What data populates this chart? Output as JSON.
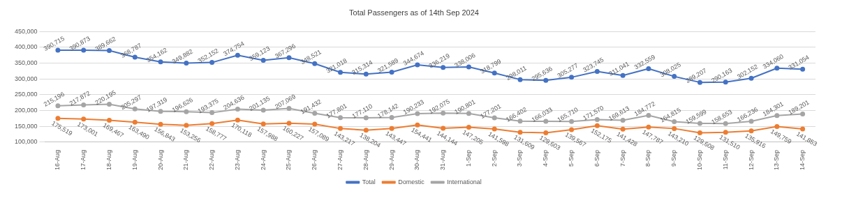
{
  "chart_data": {
    "type": "line",
    "title": "Total Passengers as of 14th Sep 2024",
    "categories": [
      "16-Aug",
      "17-Aug",
      "18-Aug",
      "19-Aug",
      "20-Aug",
      "21-Aug",
      "22-Aug",
      "23-Aug",
      "24-Aug",
      "25-Aug",
      "26-Aug",
      "27-Aug",
      "28-Aug",
      "29-Aug",
      "30-Aug",
      "31-Aug",
      "1-Sep",
      "2-Sep",
      "3-Sep",
      "4-Sep",
      "5-Sep",
      "6-Sep",
      "7-Sep",
      "8-Sep",
      "9-Sep",
      "10-Sep",
      "11-Sep",
      "12-Sep",
      "13-Sep",
      "14-Sep"
    ],
    "series": [
      {
        "name": "Total",
        "color": "#4472c4",
        "values": [
          390715,
          390873,
          389662,
          368787,
          354162,
          349882,
          352152,
          374754,
          359123,
          367296,
          348521,
          321018,
          315314,
          321589,
          344674,
          336219,
          338006,
          318799,
          298011,
          295636,
          305277,
          323745,
          311041,
          332559,
          308025,
          289207,
          290163,
          302152,
          334060,
          331054
        ],
        "value_labels": [
          "390,715",
          "390,873",
          "389,662",
          "368,787",
          "354,162",
          "349,882",
          "352,152",
          "374,754",
          "359,123",
          "367,296",
          "348,521",
          "321,018",
          "315,314",
          "321,589",
          "344,674",
          "336,219",
          "338,006",
          "318,799",
          "298,011",
          "295,636",
          "305,277",
          "323,745",
          "311,041",
          "332,559",
          "308,025",
          "289,207",
          "290,163",
          "302,152",
          "334,060",
          "331,054"
        ]
      },
      {
        "name": "Domestic",
        "color": "#ed7d31",
        "values": [
          175519,
          173001,
          169467,
          163490,
          156843,
          153256,
          158777,
          170118,
          157988,
          160227,
          157089,
          143217,
          138204,
          143447,
          154441,
          144144,
          147205,
          141598,
          131609,
          129603,
          139567,
          152175,
          141428,
          147787,
          143210,
          129608,
          131510,
          135916,
          149759,
          141853
        ],
        "value_labels": [
          "175,519",
          "173,001",
          "169,467",
          "163,490",
          "156,843",
          "153,256",
          "158,777",
          "170,118",
          "157,988",
          "160,227",
          "157,089",
          "143,217",
          "138,204",
          "143,447",
          "154,441",
          "144,144",
          "147,205",
          "141,598",
          "131,609",
          "129,603",
          "139,567",
          "152,175",
          "141,428",
          "147,787",
          "143,210",
          "129,608",
          "131,510",
          "135,916",
          "149,759",
          "141,853"
        ]
      },
      {
        "name": "International",
        "color": "#a5a5a5",
        "values": [
          215196,
          217872,
          220195,
          205297,
          197319,
          196626,
          193375,
          204636,
          201135,
          207069,
          191432,
          177801,
          177110,
          178142,
          190233,
          192075,
          190801,
          177201,
          166402,
          166033,
          165710,
          171570,
          169613,
          184772,
          164815,
          159599,
          158653,
          166236,
          184301,
          189201
        ],
        "value_labels": [
          "215,196",
          "217,872",
          "220,195",
          "205,297",
          "197,319",
          "196,626",
          "193,375",
          "204,636",
          "201,135",
          "207,069",
          "191,432",
          "177,801",
          "177,110",
          "178,142",
          "190,233",
          "192,075",
          "190,801",
          "177,201",
          "166,402",
          "166,033",
          "165,710",
          "171,570",
          "169,613",
          "184,772",
          "164,815",
          "159,599",
          "158,653",
          "166,236",
          "184,301",
          "189,201"
        ]
      }
    ],
    "ylim": [
      100000,
      450000
    ],
    "yticks": [
      {
        "value": 100000,
        "label": "100,000"
      },
      {
        "value": 150000,
        "label": "150,000"
      },
      {
        "value": 200000,
        "label": "200,000"
      },
      {
        "value": 250000,
        "label": "250,000"
      },
      {
        "value": 300000,
        "label": "300,000"
      },
      {
        "value": 350000,
        "label": "350,000"
      },
      {
        "value": 400000,
        "label": "400,000"
      },
      {
        "value": 450000,
        "label": "450,000"
      }
    ],
    "grid": "y",
    "legend": "bottom",
    "marker": "circle",
    "line_style": "solid"
  }
}
